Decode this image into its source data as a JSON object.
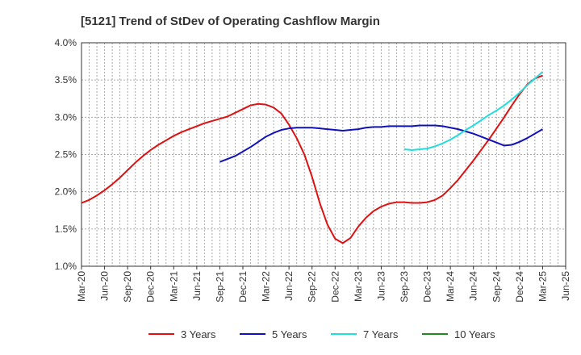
{
  "chart_data": {
    "type": "line",
    "title": "[5121]  Trend of StDev of Operating Cashflow Margin",
    "xlabel": "",
    "ylabel": "",
    "x_ticks": [
      "Mar-20",
      "Jun-20",
      "Sep-20",
      "Dec-20",
      "Mar-21",
      "Jun-21",
      "Sep-21",
      "Dec-21",
      "Mar-22",
      "Jun-22",
      "Sep-22",
      "Dec-22",
      "Mar-23",
      "Jun-23",
      "Sep-23",
      "Dec-23",
      "Mar-24",
      "Jun-24",
      "Sep-24",
      "Dec-24",
      "Mar-25",
      "Jun-25"
    ],
    "y_ticks": [
      "1.0%",
      "1.5%",
      "2.0%",
      "2.5%",
      "3.0%",
      "3.5%",
      "4.0%"
    ],
    "ylim": [
      1.0,
      4.0
    ],
    "grid": true,
    "legend_position": "bottom",
    "series": [
      {
        "name": "3 Years",
        "color": "#dd1111",
        "points": [
          [
            "Mar-20",
            1.85
          ],
          [
            "Apr-20",
            1.89
          ],
          [
            "May-20",
            1.95
          ],
          [
            "Jun-20",
            2.02
          ],
          [
            "Jul-20",
            2.1
          ],
          [
            "Aug-20",
            2.19
          ],
          [
            "Sep-20",
            2.29
          ],
          [
            "Oct-20",
            2.39
          ],
          [
            "Nov-20",
            2.48
          ],
          [
            "Dec-20",
            2.56
          ],
          [
            "Jan-21",
            2.63
          ],
          [
            "Feb-21",
            2.69
          ],
          [
            "Mar-21",
            2.75
          ],
          [
            "Apr-21",
            2.8
          ],
          [
            "May-21",
            2.84
          ],
          [
            "Jun-21",
            2.88
          ],
          [
            "Jul-21",
            2.92
          ],
          [
            "Aug-21",
            2.95
          ],
          [
            "Sep-21",
            2.98
          ],
          [
            "Oct-21",
            3.01
          ],
          [
            "Nov-21",
            3.06
          ],
          [
            "Dec-21",
            3.11
          ],
          [
            "Jan-22",
            3.16
          ],
          [
            "Feb-22",
            3.18
          ],
          [
            "Mar-22",
            3.17
          ],
          [
            "Apr-22",
            3.13
          ],
          [
            "May-22",
            3.05
          ],
          [
            "Jun-22",
            2.9
          ],
          [
            "Jul-22",
            2.72
          ],
          [
            "Aug-22",
            2.5
          ],
          [
            "Sep-22",
            2.2
          ],
          [
            "Oct-22",
            1.85
          ],
          [
            "Nov-22",
            1.56
          ],
          [
            "Dec-22",
            1.37
          ],
          [
            "Jan-23",
            1.31
          ],
          [
            "Feb-23",
            1.38
          ],
          [
            "Mar-23",
            1.53
          ],
          [
            "Apr-23",
            1.65
          ],
          [
            "May-23",
            1.74
          ],
          [
            "Jun-23",
            1.8
          ],
          [
            "Jul-23",
            1.84
          ],
          [
            "Aug-23",
            1.86
          ],
          [
            "Sep-23",
            1.86
          ],
          [
            "Oct-23",
            1.85
          ],
          [
            "Nov-23",
            1.85
          ],
          [
            "Dec-23",
            1.86
          ],
          [
            "Jan-24",
            1.89
          ],
          [
            "Feb-24",
            1.95
          ],
          [
            "Mar-24",
            2.05
          ],
          [
            "Apr-24",
            2.16
          ],
          [
            "May-24",
            2.29
          ],
          [
            "Jun-24",
            2.42
          ],
          [
            "Jul-24",
            2.56
          ],
          [
            "Aug-24",
            2.7
          ],
          [
            "Sep-24",
            2.85
          ],
          [
            "Oct-24",
            3.0
          ],
          [
            "Nov-24",
            3.16
          ],
          [
            "Dec-24",
            3.31
          ],
          [
            "Jan-25",
            3.44
          ],
          [
            "Feb-25",
            3.52
          ],
          [
            "Mar-25",
            3.56
          ]
        ]
      },
      {
        "name": "5 Years",
        "color": "#1111bb",
        "points": [
          [
            "Sep-21",
            2.4
          ],
          [
            "Oct-21",
            2.44
          ],
          [
            "Nov-21",
            2.48
          ],
          [
            "Dec-21",
            2.54
          ],
          [
            "Jan-22",
            2.6
          ],
          [
            "Feb-22",
            2.67
          ],
          [
            "Mar-22",
            2.74
          ],
          [
            "Apr-22",
            2.79
          ],
          [
            "May-22",
            2.83
          ],
          [
            "Jun-22",
            2.85
          ],
          [
            "Jul-22",
            2.86
          ],
          [
            "Aug-22",
            2.86
          ],
          [
            "Sep-22",
            2.86
          ],
          [
            "Oct-22",
            2.85
          ],
          [
            "Nov-22",
            2.84
          ],
          [
            "Dec-22",
            2.83
          ],
          [
            "Jan-23",
            2.82
          ],
          [
            "Feb-23",
            2.83
          ],
          [
            "Mar-23",
            2.84
          ],
          [
            "Apr-23",
            2.86
          ],
          [
            "May-23",
            2.87
          ],
          [
            "Jun-23",
            2.87
          ],
          [
            "Jul-23",
            2.88
          ],
          [
            "Aug-23",
            2.88
          ],
          [
            "Sep-23",
            2.88
          ],
          [
            "Oct-23",
            2.88
          ],
          [
            "Nov-23",
            2.89
          ],
          [
            "Dec-23",
            2.89
          ],
          [
            "Jan-24",
            2.89
          ],
          [
            "Feb-24",
            2.88
          ],
          [
            "Mar-24",
            2.86
          ],
          [
            "Apr-24",
            2.84
          ],
          [
            "May-24",
            2.81
          ],
          [
            "Jun-24",
            2.78
          ],
          [
            "Jul-24",
            2.74
          ],
          [
            "Aug-24",
            2.7
          ],
          [
            "Sep-24",
            2.66
          ],
          [
            "Oct-24",
            2.62
          ],
          [
            "Nov-24",
            2.63
          ],
          [
            "Dec-24",
            2.67
          ],
          [
            "Jan-25",
            2.72
          ],
          [
            "Feb-25",
            2.78
          ],
          [
            "Mar-25",
            2.84
          ]
        ]
      },
      {
        "name": "7 Years",
        "color": "#22dddd",
        "points": [
          [
            "Sep-23",
            2.57
          ],
          [
            "Oct-23",
            2.56
          ],
          [
            "Nov-23",
            2.57
          ],
          [
            "Dec-23",
            2.58
          ],
          [
            "Jan-24",
            2.61
          ],
          [
            "Feb-24",
            2.65
          ],
          [
            "Mar-24",
            2.7
          ],
          [
            "Apr-24",
            2.76
          ],
          [
            "May-24",
            2.83
          ],
          [
            "Jun-24",
            2.89
          ],
          [
            "Jul-24",
            2.96
          ],
          [
            "Aug-24",
            3.03
          ],
          [
            "Sep-24",
            3.09
          ],
          [
            "Oct-24",
            3.16
          ],
          [
            "Nov-24",
            3.24
          ],
          [
            "Dec-24",
            3.33
          ],
          [
            "Jan-25",
            3.43
          ],
          [
            "Feb-25",
            3.52
          ],
          [
            "Mar-25",
            3.61
          ]
        ]
      },
      {
        "name": "10 Years",
        "color": "#228822",
        "points": []
      }
    ]
  }
}
